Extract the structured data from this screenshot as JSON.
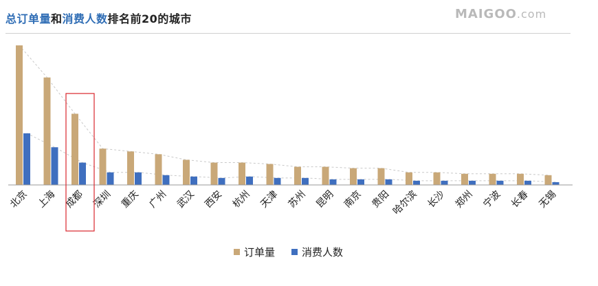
{
  "title": {
    "part1": "总订单量",
    "part2": "和",
    "part3": "消费人数",
    "part4": "排名前20的城市"
  },
  "watermark": {
    "brand": "MAIGOO",
    "suffix": ".com"
  },
  "colors": {
    "orders": "#c9a878",
    "users": "#3f6fbf",
    "highlight": "#d9262c",
    "trend": "#c8c8c8"
  },
  "highlight_category": "成都",
  "chart_data": {
    "type": "bar",
    "categories": [
      "北京",
      "上海",
      "成都",
      "深圳",
      "重庆",
      "广州",
      "武汉",
      "西安",
      "杭州",
      "天津",
      "苏州",
      "昆明",
      "南京",
      "贵阳",
      "哈尔滨",
      "长沙",
      "郑州",
      "宁波",
      "长春",
      "无锡"
    ],
    "series": [
      {
        "name": "订单量",
        "values": [
          100,
          77,
          51,
          26,
          24,
          22,
          18,
          16,
          16,
          15,
          13,
          13,
          12,
          12,
          9,
          9,
          8,
          8,
          8,
          7
        ]
      },
      {
        "name": "消费人数",
        "values": [
          37,
          27,
          16,
          9,
          9,
          7,
          6,
          5,
          6,
          5,
          5,
          4,
          4,
          4,
          3,
          3,
          3,
          3,
          3,
          2
        ]
      }
    ],
    "ylim": [
      0,
      100
    ],
    "legend_position": "bottom",
    "grid": false
  }
}
